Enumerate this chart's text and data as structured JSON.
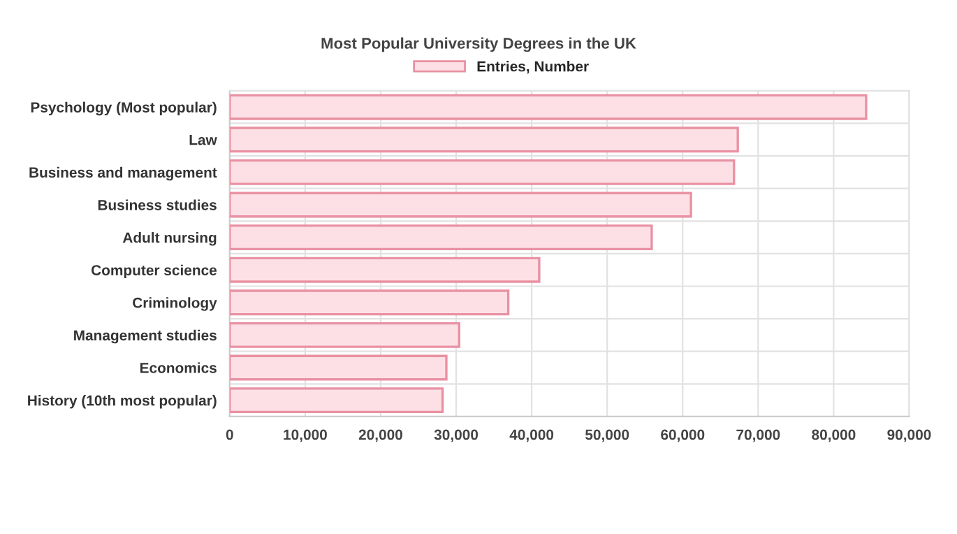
{
  "chart_data": {
    "type": "bar",
    "orientation": "horizontal",
    "title": "Most Popular University Degrees in the UK",
    "categories": [
      "Psychology (Most popular)",
      "Law",
      "Business and management",
      "Business studies",
      "Adult nursing",
      "Computer science",
      "Criminology",
      "Management studies",
      "Economics",
      "History (10th most popular)"
    ],
    "series": [
      {
        "name": "Entries, Number",
        "color": "#fde0e6",
        "values": [
          84300,
          67300,
          66800,
          61100,
          55900,
          41000,
          36900,
          30400,
          28700,
          28200
        ]
      }
    ],
    "xlim": [
      0,
      90000
    ],
    "xticks": [
      {
        "value": 0,
        "label": "0"
      },
      {
        "value": 10000,
        "label": "10,000"
      },
      {
        "value": 20000,
        "label": "20,000"
      },
      {
        "value": 30000,
        "label": "30,000"
      },
      {
        "value": 40000,
        "label": "40,000"
      },
      {
        "value": 50000,
        "label": "50,000"
      },
      {
        "value": 60000,
        "label": "60,000"
      },
      {
        "value": 70000,
        "label": "70,000"
      },
      {
        "value": 80000,
        "label": "80,000"
      },
      {
        "value": 90000,
        "label": "90,000"
      }
    ],
    "grid": true,
    "legend": "top"
  }
}
